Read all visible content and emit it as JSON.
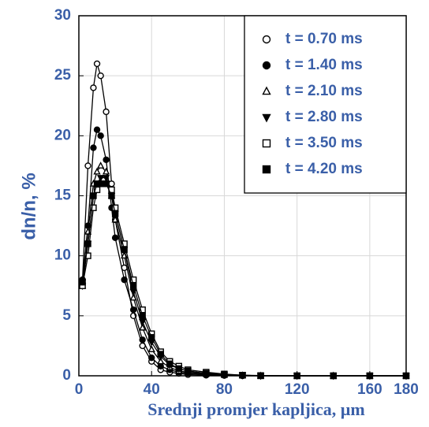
{
  "chart_data": {
    "type": "line",
    "y_label": "dn/n, %",
    "x_label": "Srednji promjer kapljica, µm",
    "x": [
      2,
      5,
      8,
      10,
      12,
      15,
      18,
      20,
      25,
      30,
      35,
      40,
      45,
      50,
      55,
      60,
      70,
      80,
      90,
      100,
      120,
      140,
      160,
      180
    ],
    "series": [
      {
        "name": "t = 0.70 ms",
        "color": "#000000",
        "marker": "circle-open",
        "values": [
          8,
          17.5,
          24,
          26,
          25,
          22,
          16,
          13,
          9,
          5,
          2.5,
          1.2,
          0.5,
          0.3,
          0.2,
          0.1,
          0.05,
          0.02,
          0,
          0,
          0,
          0,
          0,
          0
        ]
      },
      {
        "name": "t = 1.40 ms",
        "color": "#000000",
        "marker": "circle-filled",
        "values": [
          8,
          12.5,
          19,
          20.5,
          20,
          18,
          14,
          11.5,
          8,
          5.5,
          3,
          1.5,
          0.8,
          0.5,
          0.3,
          0.2,
          0.1,
          0.05,
          0,
          0,
          0,
          0,
          0,
          0
        ]
      },
      {
        "name": "t = 2.10 ms",
        "color": "#000000",
        "marker": "triangle-open",
        "values": [
          7.5,
          12,
          16,
          17,
          17.5,
          17,
          15,
          13,
          10,
          6.5,
          4,
          2.2,
          1.2,
          0.7,
          0.4,
          0.3,
          0.15,
          0.08,
          0.03,
          0,
          0,
          0,
          0,
          0
        ]
      },
      {
        "name": "t = 2.80 ms",
        "color": "#000000",
        "marker": "triangle-down-filled",
        "values": [
          7.5,
          11,
          15,
          16,
          16.5,
          16.5,
          15,
          13.5,
          10.5,
          7,
          4.5,
          2.8,
          1.6,
          0.9,
          0.6,
          0.4,
          0.2,
          0.1,
          0.05,
          0,
          0,
          0,
          0,
          0
        ]
      },
      {
        "name": "t = 3.50 ms",
        "color": "#000000",
        "marker": "square-open",
        "values": [
          7.5,
          10,
          14,
          15.5,
          16,
          16,
          15.5,
          14,
          11,
          8,
          5.5,
          3.5,
          2,
          1.2,
          0.8,
          0.5,
          0.3,
          0.15,
          0.05,
          0.02,
          0,
          0,
          0,
          0
        ]
      },
      {
        "name": "t = 4.20 ms",
        "color": "#000000",
        "marker": "square-filled",
        "values": [
          7.8,
          11,
          15,
          16,
          16,
          16,
          15,
          13.5,
          10.5,
          7.5,
          5,
          3.2,
          1.8,
          1,
          0.6,
          0.4,
          0.2,
          0.1,
          0.05,
          0,
          0,
          0,
          0,
          0
        ]
      }
    ],
    "xlim": [
      0,
      180
    ],
    "xticks": [
      0,
      40,
      80,
      120,
      160,
      180
    ],
    "ylim": [
      0,
      30
    ],
    "yticks": [
      0,
      5,
      10,
      15,
      20,
      25,
      30
    ],
    "grid": true,
    "legend": "upper right",
    "label_color": "#3a5fa8"
  }
}
